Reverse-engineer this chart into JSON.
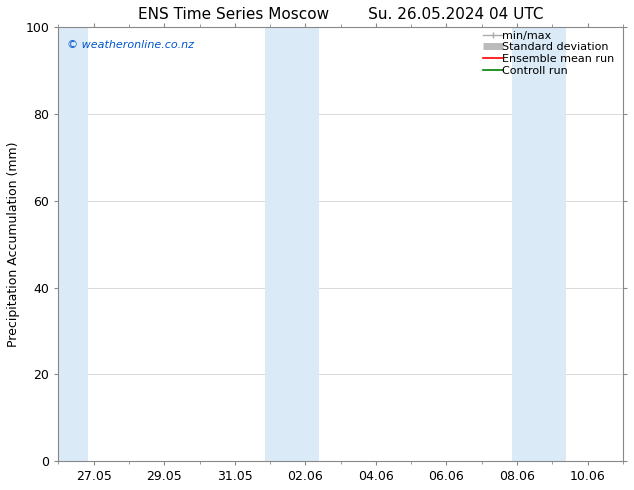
{
  "title": "ENS Time Series Moscow",
  "title2": "Su. 26.05.2024 04 UTC",
  "ylabel": "Precipitation Accumulation (mm)",
  "watermark": "© weatheronline.co.nz",
  "ylim": [
    0,
    100
  ],
  "yticks": [
    0,
    20,
    40,
    60,
    80,
    100
  ],
  "xtick_labels": [
    "27.05",
    "29.05",
    "31.05",
    "02.06",
    "04.06",
    "06.06",
    "08.06",
    "10.06"
  ],
  "xtick_positions": [
    1,
    3,
    5,
    7,
    9,
    11,
    13,
    15
  ],
  "xlim": [
    0,
    16
  ],
  "bands": [
    [
      0.0,
      0.85
    ],
    [
      5.85,
      6.55
    ],
    [
      6.55,
      7.4
    ],
    [
      12.85,
      13.55
    ],
    [
      13.55,
      14.4
    ]
  ],
  "band_color": "#daeaf7",
  "background_color": "#ffffff",
  "grid_color": "#cccccc",
  "watermark_color": "#0055cc",
  "title_fontsize": 11,
  "axis_label_fontsize": 9,
  "tick_fontsize": 9,
  "legend_fontsize": 8,
  "spine_color": "#888888"
}
